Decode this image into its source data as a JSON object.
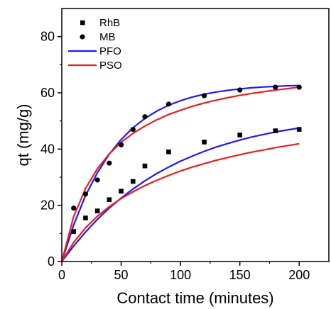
{
  "chart_data": {
    "type": "scatter",
    "xlabel": "Contact time (minutes)",
    "ylabel": "qt (mg/g)",
    "xlim": [
      0,
      225
    ],
    "ylim": [
      0,
      90
    ],
    "xticks": [
      0,
      50,
      100,
      150,
      200
    ],
    "yticks": [
      0,
      20,
      40,
      60,
      80
    ],
    "grid": false,
    "legend_position": "top-left",
    "series": [
      {
        "name": "RhB",
        "kind": "markers",
        "marker": "square",
        "color": "#000000",
        "x": [
          10,
          20,
          30,
          40,
          50,
          60,
          70,
          90,
          120,
          150,
          180,
          200
        ],
        "y": [
          10.7,
          15.5,
          18.0,
          22.0,
          25.0,
          28.5,
          34.0,
          39.0,
          42.5,
          45.0,
          46.5,
          47.0
        ]
      },
      {
        "name": "MB",
        "kind": "markers",
        "marker": "circle",
        "color": "#000000",
        "x": [
          10,
          20,
          30,
          40,
          50,
          60,
          70,
          90,
          120,
          150,
          180,
          200
        ],
        "y": [
          19.0,
          24.0,
          29.0,
          35.0,
          41.5,
          47.0,
          51.5,
          56.0,
          59.0,
          61.0,
          62.0,
          62.0
        ]
      },
      {
        "name": "PFO",
        "kind": "line",
        "color": "#1a1aff",
        "x": [
          0,
          10,
          20,
          30,
          40,
          50,
          60,
          70,
          80,
          90,
          100,
          110,
          120,
          130,
          140,
          150,
          160,
          170,
          180,
          190,
          200
        ],
        "y_sets": [
          [
            0,
            5.5,
            10.5,
            15.0,
            19.0,
            22.6,
            25.8,
            28.7,
            31.3,
            33.6,
            35.7,
            37.5,
            39.2,
            40.7,
            42.0,
            43.2,
            44.3,
            45.2,
            46.1,
            46.8,
            47.5
          ],
          [
            0,
            13.0,
            23.5,
            31.6,
            38.2,
            43.4,
            47.6,
            50.9,
            53.5,
            55.6,
            57.2,
            58.5,
            59.5,
            60.3,
            60.9,
            61.4,
            61.8,
            62.1,
            62.3,
            62.5,
            62.6
          ]
        ]
      },
      {
        "name": "PSO",
        "kind": "line",
        "color": "#ee1c1c",
        "x": [
          0,
          10,
          20,
          30,
          40,
          50,
          60,
          70,
          80,
          90,
          100,
          110,
          120,
          130,
          140,
          150,
          160,
          170,
          180,
          190,
          200
        ],
        "y_sets": [
          [
            0,
            6.8,
            12.0,
            16.1,
            19.5,
            22.4,
            24.8,
            27.0,
            28.9,
            30.6,
            32.2,
            33.6,
            34.8,
            36.0,
            37.0,
            38.0,
            38.9,
            39.7,
            40.5,
            41.2,
            41.9
          ],
          [
            0,
            16.0,
            26.0,
            33.0,
            38.3,
            42.4,
            45.6,
            48.2,
            50.4,
            52.3,
            53.8,
            55.2,
            56.4,
            57.4,
            58.3,
            59.1,
            59.8,
            60.4,
            61.0,
            61.5,
            62.0
          ]
        ]
      }
    ]
  }
}
